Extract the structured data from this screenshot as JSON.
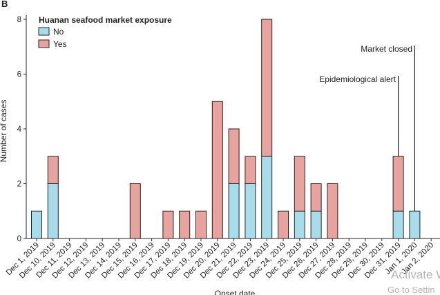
{
  "chart_data": {
    "type": "bar",
    "stacked": true,
    "panel_label": "B",
    "xlabel": "Onset date",
    "ylabel": "Number of cases",
    "ylim": [
      0,
      8
    ],
    "yticks": [
      "0",
      "2",
      "4",
      "6",
      "8"
    ],
    "legend": {
      "title": "Huanan seafood market exposure",
      "placement": "top-left"
    },
    "categories": [
      "Dec 1, 2019",
      "Dec 10, 2019",
      "Dec 11, 2019",
      "Dec 12, 2019",
      "Dec 13, 2019",
      "Dec 14, 2019",
      "Dec 15, 2019",
      "Dec 16, 2019",
      "Dec 17, 2019",
      "Dec 18, 2019",
      "Dec 19, 2019",
      "Dec 20, 2019",
      "Dec 21, 2019",
      "Dec 22, 2019",
      "Dec 23, 2019",
      "Dec 24, 2019",
      "Dec 25, 2019",
      "Dec 26, 2019",
      "Dec 27, 2019",
      "Dec 28, 2019",
      "Dec 29, 2019",
      "Dec 30, 2019",
      "Dec 31, 2019",
      "Jan 1, 2020",
      "Jan 2, 2020"
    ],
    "series": [
      {
        "name": "No",
        "color": "#a8dcea",
        "values": [
          1,
          2,
          0,
          0,
          0,
          0,
          0,
          0,
          0,
          0,
          0,
          0,
          2,
          2,
          3,
          0,
          1,
          1,
          0,
          0,
          0,
          0,
          1,
          1,
          0
        ]
      },
      {
        "name": "Yes",
        "color": "#e8a39f",
        "values": [
          0,
          1,
          0,
          0,
          0,
          0,
          2,
          0,
          1,
          1,
          1,
          5,
          2,
          1,
          5,
          1,
          2,
          1,
          2,
          0,
          0,
          0,
          2,
          0,
          0
        ]
      }
    ],
    "annotations": [
      {
        "text": "Epidemiological alert",
        "category": "Dec 31, 2019"
      },
      {
        "text": "Market closed",
        "category": "Jan 1, 2020"
      }
    ],
    "grid": false
  },
  "watermark": {
    "line1": "Activate W",
    "line2": "Go to Settin"
  }
}
